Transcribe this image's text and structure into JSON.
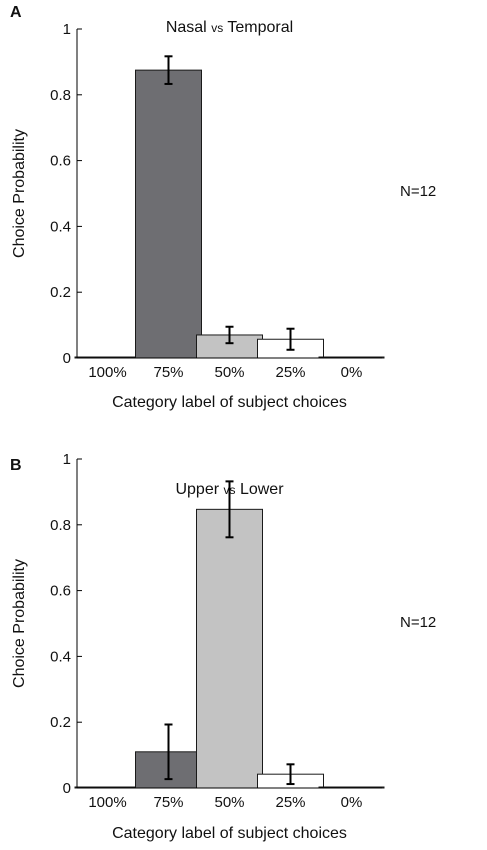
{
  "chart_data": [
    {
      "type": "bar",
      "panel": "A",
      "title_parts": [
        "Nasal ",
        "vs",
        " Temporal"
      ],
      "xlabel": "Category label of subject choices",
      "ylabel": "Choice Probability",
      "annotation": "N=12",
      "categories": [
        "100%",
        "75%",
        "50%",
        "25%",
        "0%"
      ],
      "values": [
        0.0,
        0.875,
        0.07,
        0.057,
        0.0
      ],
      "errors": [
        0.0,
        0.042,
        0.025,
        0.032,
        0.0
      ],
      "colors": [
        "#ffffff",
        "#6e6e72",
        "#c3c3c3",
        "#ffffff",
        "#ffffff"
      ],
      "ylim": [
        0,
        1
      ],
      "yticks": [
        0,
        0.2,
        0.4,
        0.6,
        0.8,
        1
      ],
      "ytick_labels": [
        "0",
        "0.2",
        "0.4",
        "0.6",
        "0.8",
        "1"
      ]
    },
    {
      "type": "bar",
      "panel": "B",
      "title_parts": [
        "Upper ",
        "vs",
        " Lower"
      ],
      "xlabel": "Category label of subject choices",
      "ylabel": "Choice Probability",
      "annotation": "N=12",
      "categories": [
        "100%",
        "75%",
        "50%",
        "25%",
        "0%"
      ],
      "values": [
        0.0,
        0.11,
        0.847,
        0.042,
        0.0
      ],
      "errors": [
        0.0,
        0.083,
        0.085,
        0.03,
        0.0
      ],
      "colors": [
        "#ffffff",
        "#6e6e72",
        "#c3c3c3",
        "#ffffff",
        "#ffffff"
      ],
      "ylim": [
        0,
        1
      ],
      "yticks": [
        0,
        0.2,
        0.4,
        0.6,
        0.8,
        1
      ],
      "ytick_labels": [
        "0",
        "0.2",
        "0.4",
        "0.6",
        "0.8",
        "1"
      ]
    }
  ]
}
